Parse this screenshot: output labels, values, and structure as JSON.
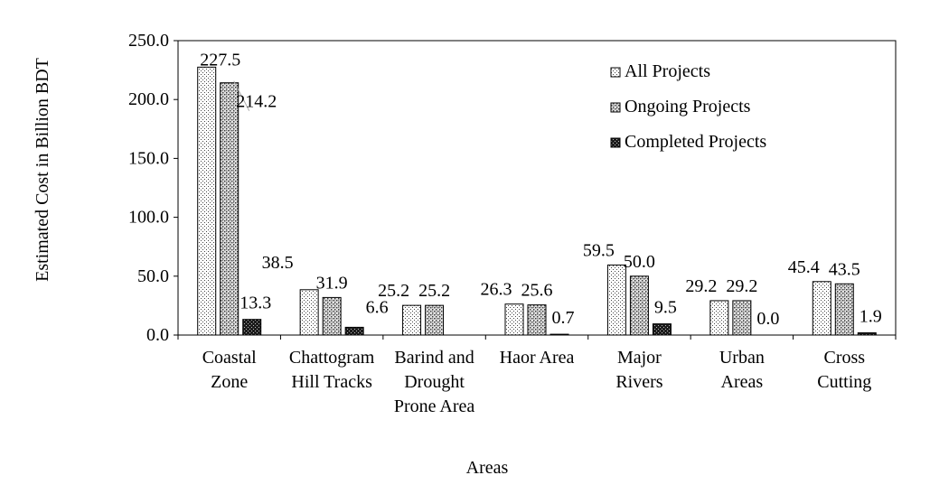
{
  "chart_data": {
    "type": "bar",
    "title": "",
    "xlabel": "Areas",
    "ylabel": "Estimated Cost in Billion BDT",
    "ylim": [
      0,
      250
    ],
    "yticks": [
      "0.0",
      "50.0",
      "100.0",
      "150.0",
      "200.0",
      "250.0"
    ],
    "categories": [
      [
        "Coastal",
        "Zone"
      ],
      [
        "Chattogram",
        "Hill Tracks"
      ],
      [
        "Barind and",
        "Drought",
        "Prone Area"
      ],
      [
        "Haor Area"
      ],
      [
        "Major",
        "Rivers"
      ],
      [
        "Urban",
        "Areas"
      ],
      [
        "Cross",
        "Cutting"
      ]
    ],
    "series": [
      {
        "name": "All Projects",
        "values": [
          227.5,
          38.5,
          25.2,
          26.3,
          59.5,
          29.2,
          45.4
        ],
        "labels": [
          "227.5",
          "38.5",
          "25.2",
          "26.3",
          "59.5",
          "29.2",
          "45.4"
        ]
      },
      {
        "name": "Ongoing Projects",
        "values": [
          214.2,
          31.9,
          25.2,
          25.6,
          50.0,
          29.2,
          43.5
        ],
        "labels": [
          "214.2",
          "31.9",
          "25.2",
          "25.6",
          "50.0",
          "29.2",
          "43.5"
        ]
      },
      {
        "name": "Completed Projects",
        "values": [
          13.3,
          6.6,
          null,
          0.7,
          9.5,
          0.0,
          1.9
        ],
        "labels": [
          "13.3",
          "6.6",
          null,
          "0.7",
          "9.5",
          "0.0",
          "1.9"
        ]
      }
    ],
    "legend": "top-right",
    "grid": false
  }
}
